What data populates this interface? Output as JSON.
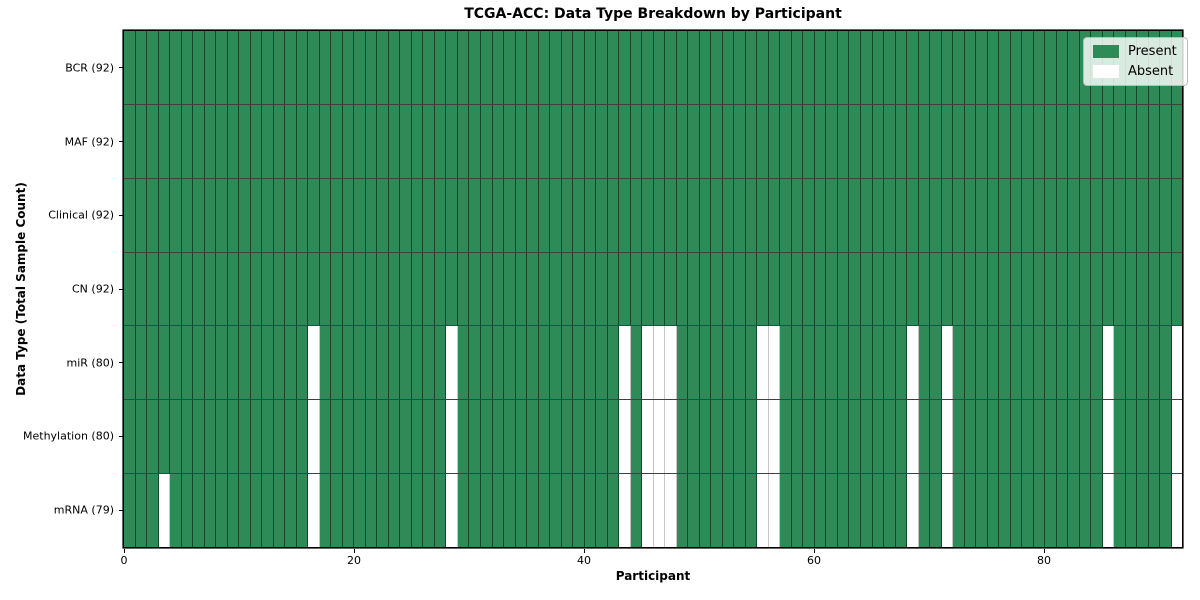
{
  "chart_data": {
    "type": "heatmap",
    "title": "TCGA-ACC: Data Type Breakdown by Participant",
    "xlabel": "Participant",
    "ylabel": "Data Type (Total Sample Count)",
    "x_ticks": [
      0,
      20,
      40,
      60,
      80
    ],
    "xlim": [
      0,
      92
    ],
    "n_participants": 92,
    "grid": true,
    "legend_position": "upper right",
    "colors": {
      "present": "#2e8b57",
      "absent": "#ffffff"
    },
    "legend": [
      {
        "key": "present",
        "label": "Present",
        "color": "#2e8b57"
      },
      {
        "key": "absent",
        "label": "Absent",
        "color": "#ffffff"
      }
    ],
    "rows": [
      {
        "label": "BCR (92)",
        "data_type": "BCR",
        "total": 92,
        "absent_participants": []
      },
      {
        "label": "MAF (92)",
        "data_type": "MAF",
        "total": 92,
        "absent_participants": []
      },
      {
        "label": "Clinical (92)",
        "data_type": "Clinical",
        "total": 92,
        "absent_participants": []
      },
      {
        "label": "CN (92)",
        "data_type": "CN",
        "total": 92,
        "absent_participants": []
      },
      {
        "label": "miR (80)",
        "data_type": "miR",
        "total": 80,
        "absent_participants": [
          16,
          28,
          43,
          45,
          46,
          47,
          55,
          56,
          68,
          71,
          85,
          91
        ]
      },
      {
        "label": "Methylation (80)",
        "data_type": "Methylation",
        "total": 80,
        "absent_participants": [
          16,
          28,
          43,
          45,
          46,
          47,
          55,
          56,
          68,
          71,
          85,
          91
        ]
      },
      {
        "label": "mRNA (79)",
        "data_type": "mRNA",
        "total": 79,
        "absent_participants": [
          3,
          16,
          28,
          43,
          45,
          46,
          47,
          55,
          56,
          68,
          71,
          85,
          91
        ]
      }
    ]
  }
}
